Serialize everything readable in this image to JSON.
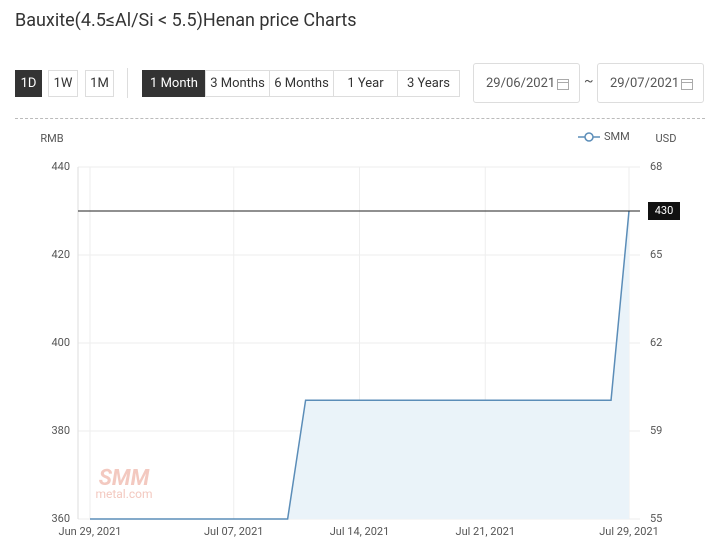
{
  "header": {
    "title": "Bauxite(4.5≤Al/Si < 5.5)Henan price Charts"
  },
  "controls": {
    "intervals": [
      "1D",
      "1W",
      "1M"
    ],
    "active_interval": 0,
    "ranges": [
      "1 Month",
      "3 Months",
      "6 Months",
      "1 Year",
      "3 Years"
    ],
    "active_range": 0,
    "start_date": "29/06/2021",
    "separator": "~",
    "end_date": "29/07/2021"
  },
  "chart_data": {
    "type": "area",
    "ylabel": "RMB",
    "y2label": "USD",
    "x": [
      "Jun 29, 2021",
      "Jul 10, 2021",
      "Jul 11, 2021",
      "Jul 28, 2021",
      "Jul 29, 2021"
    ],
    "series": [
      {
        "name": "SMM",
        "color": "#5b8db8",
        "fill": "#eaf3f9",
        "values": [
          360,
          360,
          387,
          387,
          430
        ]
      }
    ],
    "xlim": [
      "Jun 29, 2021",
      "Jul 29, 2021"
    ],
    "xticks": [
      "Jun 29, 2021",
      "Jul 07, 2021",
      "Jul 14, 2021",
      "Jul 21, 2021",
      "Jul 29, 2021"
    ],
    "ylim": [
      360,
      440
    ],
    "yticks": [
      360,
      380,
      400,
      420,
      440
    ],
    "y2lim": [
      55.45,
      67.85
    ],
    "y2ticks": [
      {
        "value": 55.45,
        "label": "55"
      },
      {
        "value": 58.55,
        "label": "59"
      },
      {
        "value": 61.65,
        "label": "62"
      },
      {
        "value": 64.75,
        "label": "65"
      },
      {
        "value": 67.85,
        "label": "68"
      }
    ],
    "grid": true,
    "legend": "top-right",
    "watermark": [
      "SMM",
      "metal.com"
    ]
  }
}
